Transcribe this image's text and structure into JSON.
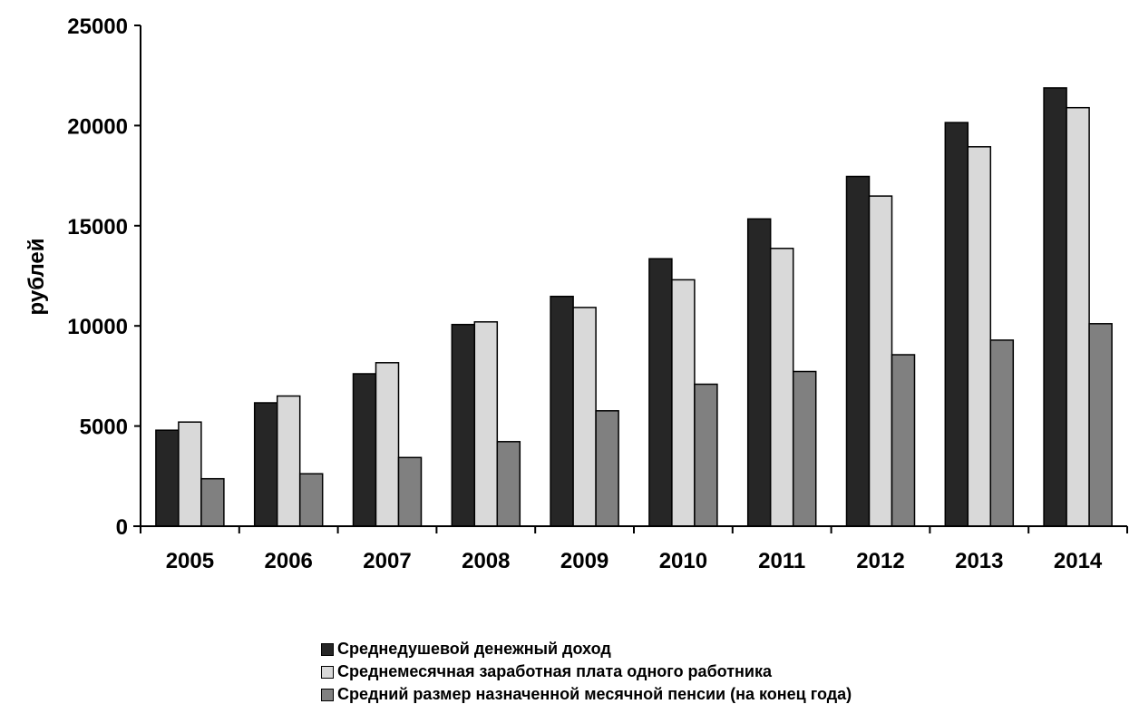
{
  "chart_data": {
    "type": "bar",
    "ylabel": "рублей",
    "xlabel": "",
    "ylim": [
      0,
      25000
    ],
    "yticks": [
      "0",
      "5000",
      "10000",
      "15000",
      "20000",
      "25000"
    ],
    "categories": [
      "2005",
      "2006",
      "2007",
      "2008",
      "2009",
      "2010",
      "2011",
      "2012",
      "2013",
      "2014"
    ],
    "grid": false,
    "legend_position": "bottom",
    "series": [
      {
        "name": "Среднедушевой денежный доход",
        "color": "#262626",
        "values": [
          4790,
          6160,
          7610,
          10070,
          11470,
          13350,
          15340,
          17460,
          20150,
          21880
        ]
      },
      {
        "name": "Среднемесячная заработная плата одного работника",
        "color": "#d9d9d9",
        "values": [
          5200,
          6500,
          8160,
          10200,
          10920,
          12300,
          13870,
          16480,
          18940,
          20890
        ]
      },
      {
        "name": "Средний размер назначенной месячной пенсии (на конец года)",
        "color": "#808080",
        "values": [
          2370,
          2620,
          3430,
          4220,
          5760,
          7090,
          7720,
          8560,
          9290,
          10110
        ]
      }
    ]
  }
}
